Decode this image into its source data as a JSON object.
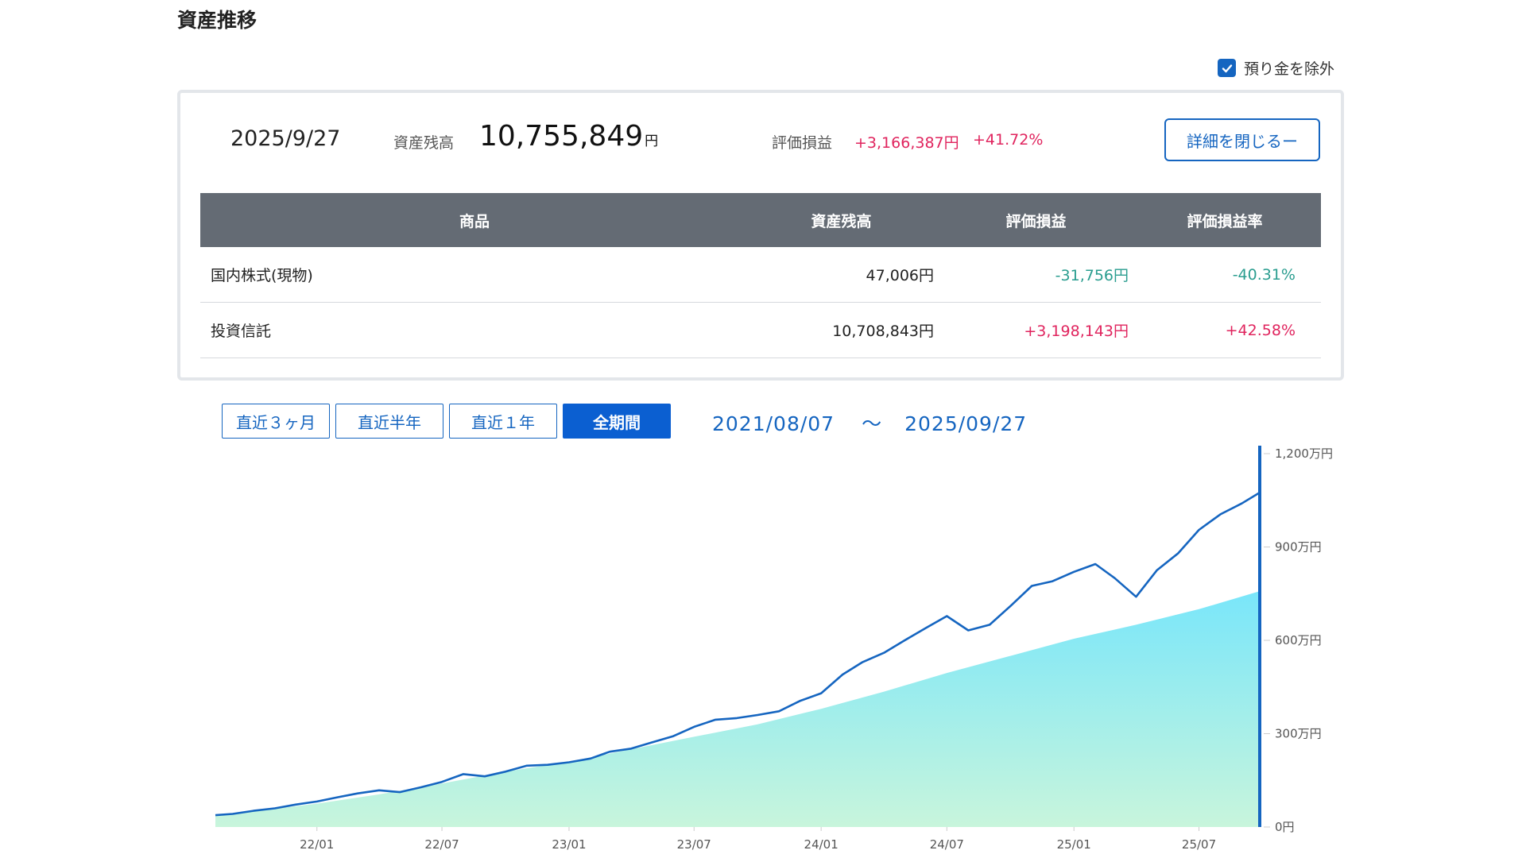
{
  "page": {
    "title": "資産推移"
  },
  "exclude_deposit": {
    "label": "預り金を除外",
    "checked": true
  },
  "summary": {
    "date": "2025/9/27",
    "assets_label": "資産残高",
    "assets_value": "10,755,849",
    "assets_unit": "円",
    "pl_label": "評価損益",
    "pl_value": "+3,166,387円",
    "pl_rate": "+41.72%",
    "close_button": "詳細を閉じるー"
  },
  "table": {
    "headers": [
      "商品",
      "資産残高",
      "評価損益",
      "評価損益率"
    ],
    "rows": [
      {
        "product": "国内株式(現物)",
        "balance": "47,006円",
        "pl": "-31,756円",
        "rate": "-40.31%"
      },
      {
        "product": "投資信託",
        "balance": "10,708,843円",
        "pl": "+3,198,143円",
        "rate": "+42.58%"
      }
    ]
  },
  "ranges": {
    "m3": "直近３ヶ月",
    "m6": "直近半年",
    "y1": "直近１年",
    "all": "全期間"
  },
  "date_range": {
    "from": "2021/08/07",
    "sep": "～",
    "to": "2025/09/27"
  },
  "colors": {
    "accent": "#1565c0",
    "positive": "#e0245e",
    "negative": "#2a9d8f",
    "line": "#1565c0",
    "area_top": "#79e6fa",
    "area_bottom": "#c8f5dc"
  },
  "chart_data": {
    "type": "area",
    "y_unit": "万円",
    "ylim": [
      0,
      1200
    ],
    "y_ticks": [
      {
        "value": 0,
        "label": "0円"
      },
      {
        "value": 300,
        "label": "300万円"
      },
      {
        "value": 600,
        "label": "600万円"
      },
      {
        "value": 900,
        "label": "900万円"
      },
      {
        "value": 1200,
        "label": "1,200万円"
      }
    ],
    "x_start": "2021-08-07",
    "x_end": "2025-09-27",
    "x_ticks": [
      {
        "date": "2022-01-01",
        "label": "22/01"
      },
      {
        "date": "2022-07-01",
        "label": "22/07"
      },
      {
        "date": "2023-01-01",
        "label": "23/01"
      },
      {
        "date": "2023-07-01",
        "label": "23/07"
      },
      {
        "date": "2024-01-01",
        "label": "24/01"
      },
      {
        "date": "2024-07-01",
        "label": "24/07"
      },
      {
        "date": "2025-01-01",
        "label": "25/01"
      },
      {
        "date": "2025-07-01",
        "label": "25/07"
      }
    ],
    "series": [
      {
        "kind": "area",
        "points": [
          [
            "2021-08-07",
            37
          ],
          [
            "2021-10-01",
            50
          ],
          [
            "2022-01-01",
            75
          ],
          [
            "2022-04-01",
            105
          ],
          [
            "2022-07-01",
            140
          ],
          [
            "2022-10-01",
            178
          ],
          [
            "2023-01-01",
            210
          ],
          [
            "2023-04-01",
            250
          ],
          [
            "2023-07-01",
            290
          ],
          [
            "2023-10-01",
            330
          ],
          [
            "2024-01-01",
            380
          ],
          [
            "2024-04-01",
            435
          ],
          [
            "2024-07-01",
            495
          ],
          [
            "2024-10-01",
            550
          ],
          [
            "2025-01-01",
            605
          ],
          [
            "2025-04-01",
            650
          ],
          [
            "2025-07-01",
            700
          ],
          [
            "2025-09-27",
            758
          ]
        ]
      },
      {
        "kind": "line",
        "points": [
          [
            "2021-08-07",
            38
          ],
          [
            "2021-09-01",
            42
          ],
          [
            "2021-10-01",
            52
          ],
          [
            "2021-11-01",
            60
          ],
          [
            "2021-12-01",
            72
          ],
          [
            "2022-01-01",
            82
          ],
          [
            "2022-02-01",
            96
          ],
          [
            "2022-03-01",
            108
          ],
          [
            "2022-04-01",
            118
          ],
          [
            "2022-05-01",
            112
          ],
          [
            "2022-06-01",
            128
          ],
          [
            "2022-07-01",
            145
          ],
          [
            "2022-08-01",
            170
          ],
          [
            "2022-09-01",
            163
          ],
          [
            "2022-10-01",
            178
          ],
          [
            "2022-11-01",
            197
          ],
          [
            "2022-12-01",
            200
          ],
          [
            "2023-01-01",
            208
          ],
          [
            "2023-02-01",
            220
          ],
          [
            "2023-03-01",
            242
          ],
          [
            "2023-04-01",
            252
          ],
          [
            "2023-05-01",
            272
          ],
          [
            "2023-06-01",
            292
          ],
          [
            "2023-07-01",
            322
          ],
          [
            "2023-08-01",
            345
          ],
          [
            "2023-09-01",
            350
          ],
          [
            "2023-10-01",
            360
          ],
          [
            "2023-11-01",
            372
          ],
          [
            "2023-12-01",
            405
          ],
          [
            "2024-01-01",
            430
          ],
          [
            "2024-02-01",
            490
          ],
          [
            "2024-03-01",
            530
          ],
          [
            "2024-04-01",
            560
          ],
          [
            "2024-05-01",
            600
          ],
          [
            "2024-06-01",
            640
          ],
          [
            "2024-07-01",
            678
          ],
          [
            "2024-08-01",
            632
          ],
          [
            "2024-09-01",
            650
          ],
          [
            "2024-10-01",
            710
          ],
          [
            "2024-11-01",
            775
          ],
          [
            "2024-12-01",
            790
          ],
          [
            "2025-01-01",
            820
          ],
          [
            "2025-02-01",
            845
          ],
          [
            "2025-03-01",
            800
          ],
          [
            "2025-04-01",
            740
          ],
          [
            "2025-05-01",
            825
          ],
          [
            "2025-06-01",
            880
          ],
          [
            "2025-07-01",
            955
          ],
          [
            "2025-08-01",
            1005
          ],
          [
            "2025-09-01",
            1040
          ],
          [
            "2025-09-27",
            1075
          ]
        ]
      }
    ],
    "grid": false
  }
}
